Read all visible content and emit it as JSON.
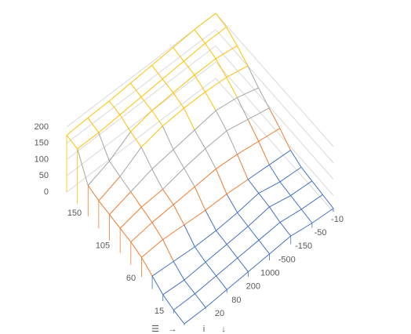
{
  "chart_data": {
    "type": "surface",
    "categories": [
      null,
      "150",
      null,
      null,
      "105",
      null,
      null,
      "60",
      null,
      null,
      "15",
      null
    ],
    "series": [
      {
        "name": "20",
        "values": [
          175,
          170,
          95,
          85,
          80,
          75,
          70,
          60,
          40,
          20,
          10,
          5
        ]
      },
      {
        "name": "80",
        "values": [
          178,
          170,
          120,
          110,
          100,
          90,
          80,
          65,
          35,
          15,
          10,
          5
        ]
      },
      {
        "name": "200",
        "values": [
          180,
          175,
          160,
          150,
          120,
          95,
          85,
          60,
          30,
          20,
          15,
          10
        ]
      },
      {
        "name": "1000",
        "values": [
          185,
          180,
          175,
          165,
          130,
          110,
          90,
          55,
          30,
          25,
          20,
          15
        ]
      },
      {
        "name": "-500",
        "values": [
          190,
          185,
          180,
          170,
          140,
          120,
          95,
          55,
          35,
          30,
          25,
          20
        ]
      },
      {
        "name": "-150",
        "values": [
          195,
          190,
          185,
          170,
          150,
          125,
          90,
          50,
          45,
          40,
          30,
          25
        ]
      },
      {
        "name": "-50",
        "values": [
          200,
          195,
          185,
          165,
          140,
          110,
          80,
          45,
          30,
          25,
          20,
          15
        ]
      },
      {
        "name": "-10",
        "values": [
          200,
          195,
          175,
          150,
          120,
          95,
          70,
          40,
          25,
          20,
          15,
          10
        ]
      }
    ],
    "zlim": [
      0,
      200
    ],
    "zticks": [
      0,
      50,
      100,
      150,
      200
    ],
    "band_colors": [
      "#4472c4",
      "#ed7d31",
      "#a5a5a5",
      "#ffc000"
    ],
    "legend_symbols": [
      "☰",
      "→",
      "i",
      "↓"
    ]
  }
}
